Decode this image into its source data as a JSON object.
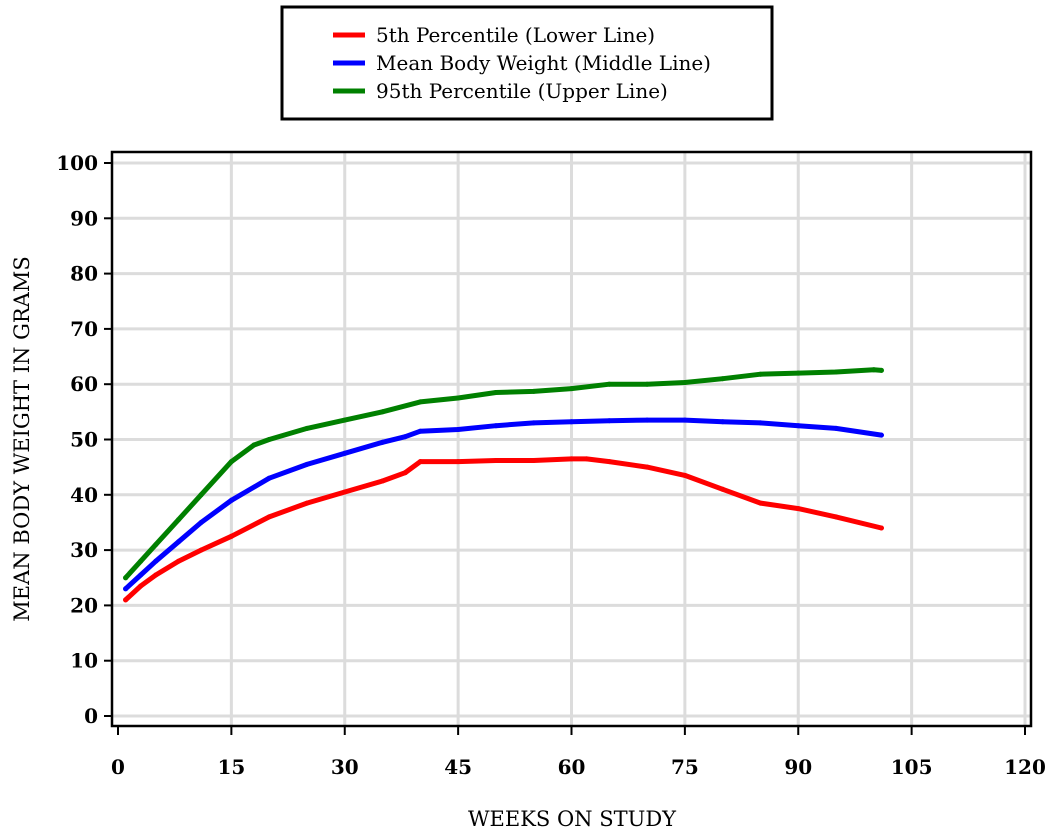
{
  "chart_data": {
    "type": "line",
    "title": "",
    "xlabel": "WEEKS ON STUDY",
    "ylabel": "MEAN BODY WEIGHT IN GRAMS",
    "xlim": [
      0,
      120
    ],
    "ylim": [
      0,
      100
    ],
    "xticks": [
      0,
      15,
      30,
      45,
      60,
      75,
      90,
      105,
      120
    ],
    "yticks": [
      0,
      10,
      20,
      30,
      40,
      50,
      60,
      70,
      80,
      90,
      100
    ],
    "grid": true,
    "legend_position": "top-center",
    "series": [
      {
        "name": "5th Percentile (Lower Line)",
        "color": "#ff0000",
        "x": [
          1,
          3,
          5,
          8,
          11,
          15,
          20,
          25,
          30,
          35,
          38,
          40,
          45,
          50,
          55,
          60,
          62,
          65,
          70,
          75,
          80,
          85,
          90,
          95,
          101
        ],
        "y": [
          21,
          23.5,
          25.5,
          28,
          30,
          32.5,
          36,
          38.5,
          40.5,
          42.5,
          44,
          46,
          46,
          46.2,
          46.2,
          46.5,
          46.5,
          46,
          45,
          43.5,
          41,
          38.5,
          37.5,
          36,
          34
        ]
      },
      {
        "name": "Mean Body Weight (Middle Line)",
        "color": "#0000ff",
        "x": [
          1,
          3,
          5,
          8,
          11,
          15,
          20,
          25,
          30,
          35,
          38,
          40,
          45,
          50,
          55,
          60,
          65,
          70,
          75,
          80,
          85,
          90,
          95,
          101
        ],
        "y": [
          23,
          25.5,
          28,
          31.5,
          35,
          39,
          43,
          45.5,
          47.5,
          49.5,
          50.5,
          51.5,
          51.8,
          52.5,
          53,
          53.2,
          53.4,
          53.5,
          53.5,
          53.2,
          53,
          52.5,
          52,
          50.8
        ]
      },
      {
        "name": "95th Percentile (Upper Line)",
        "color": "#008000",
        "x": [
          1,
          3,
          5,
          8,
          11,
          15,
          18,
          20,
          25,
          30,
          35,
          40,
          45,
          50,
          55,
          60,
          65,
          70,
          75,
          80,
          85,
          90,
          95,
          100,
          101
        ],
        "y": [
          25,
          28,
          31,
          35.5,
          40,
          46,
          49,
          50,
          52,
          53.5,
          55,
          56.8,
          57.5,
          58.5,
          58.7,
          59.2,
          60,
          60,
          60.3,
          61,
          61.8,
          62,
          62.2,
          62.6,
          62.5
        ]
      }
    ]
  }
}
